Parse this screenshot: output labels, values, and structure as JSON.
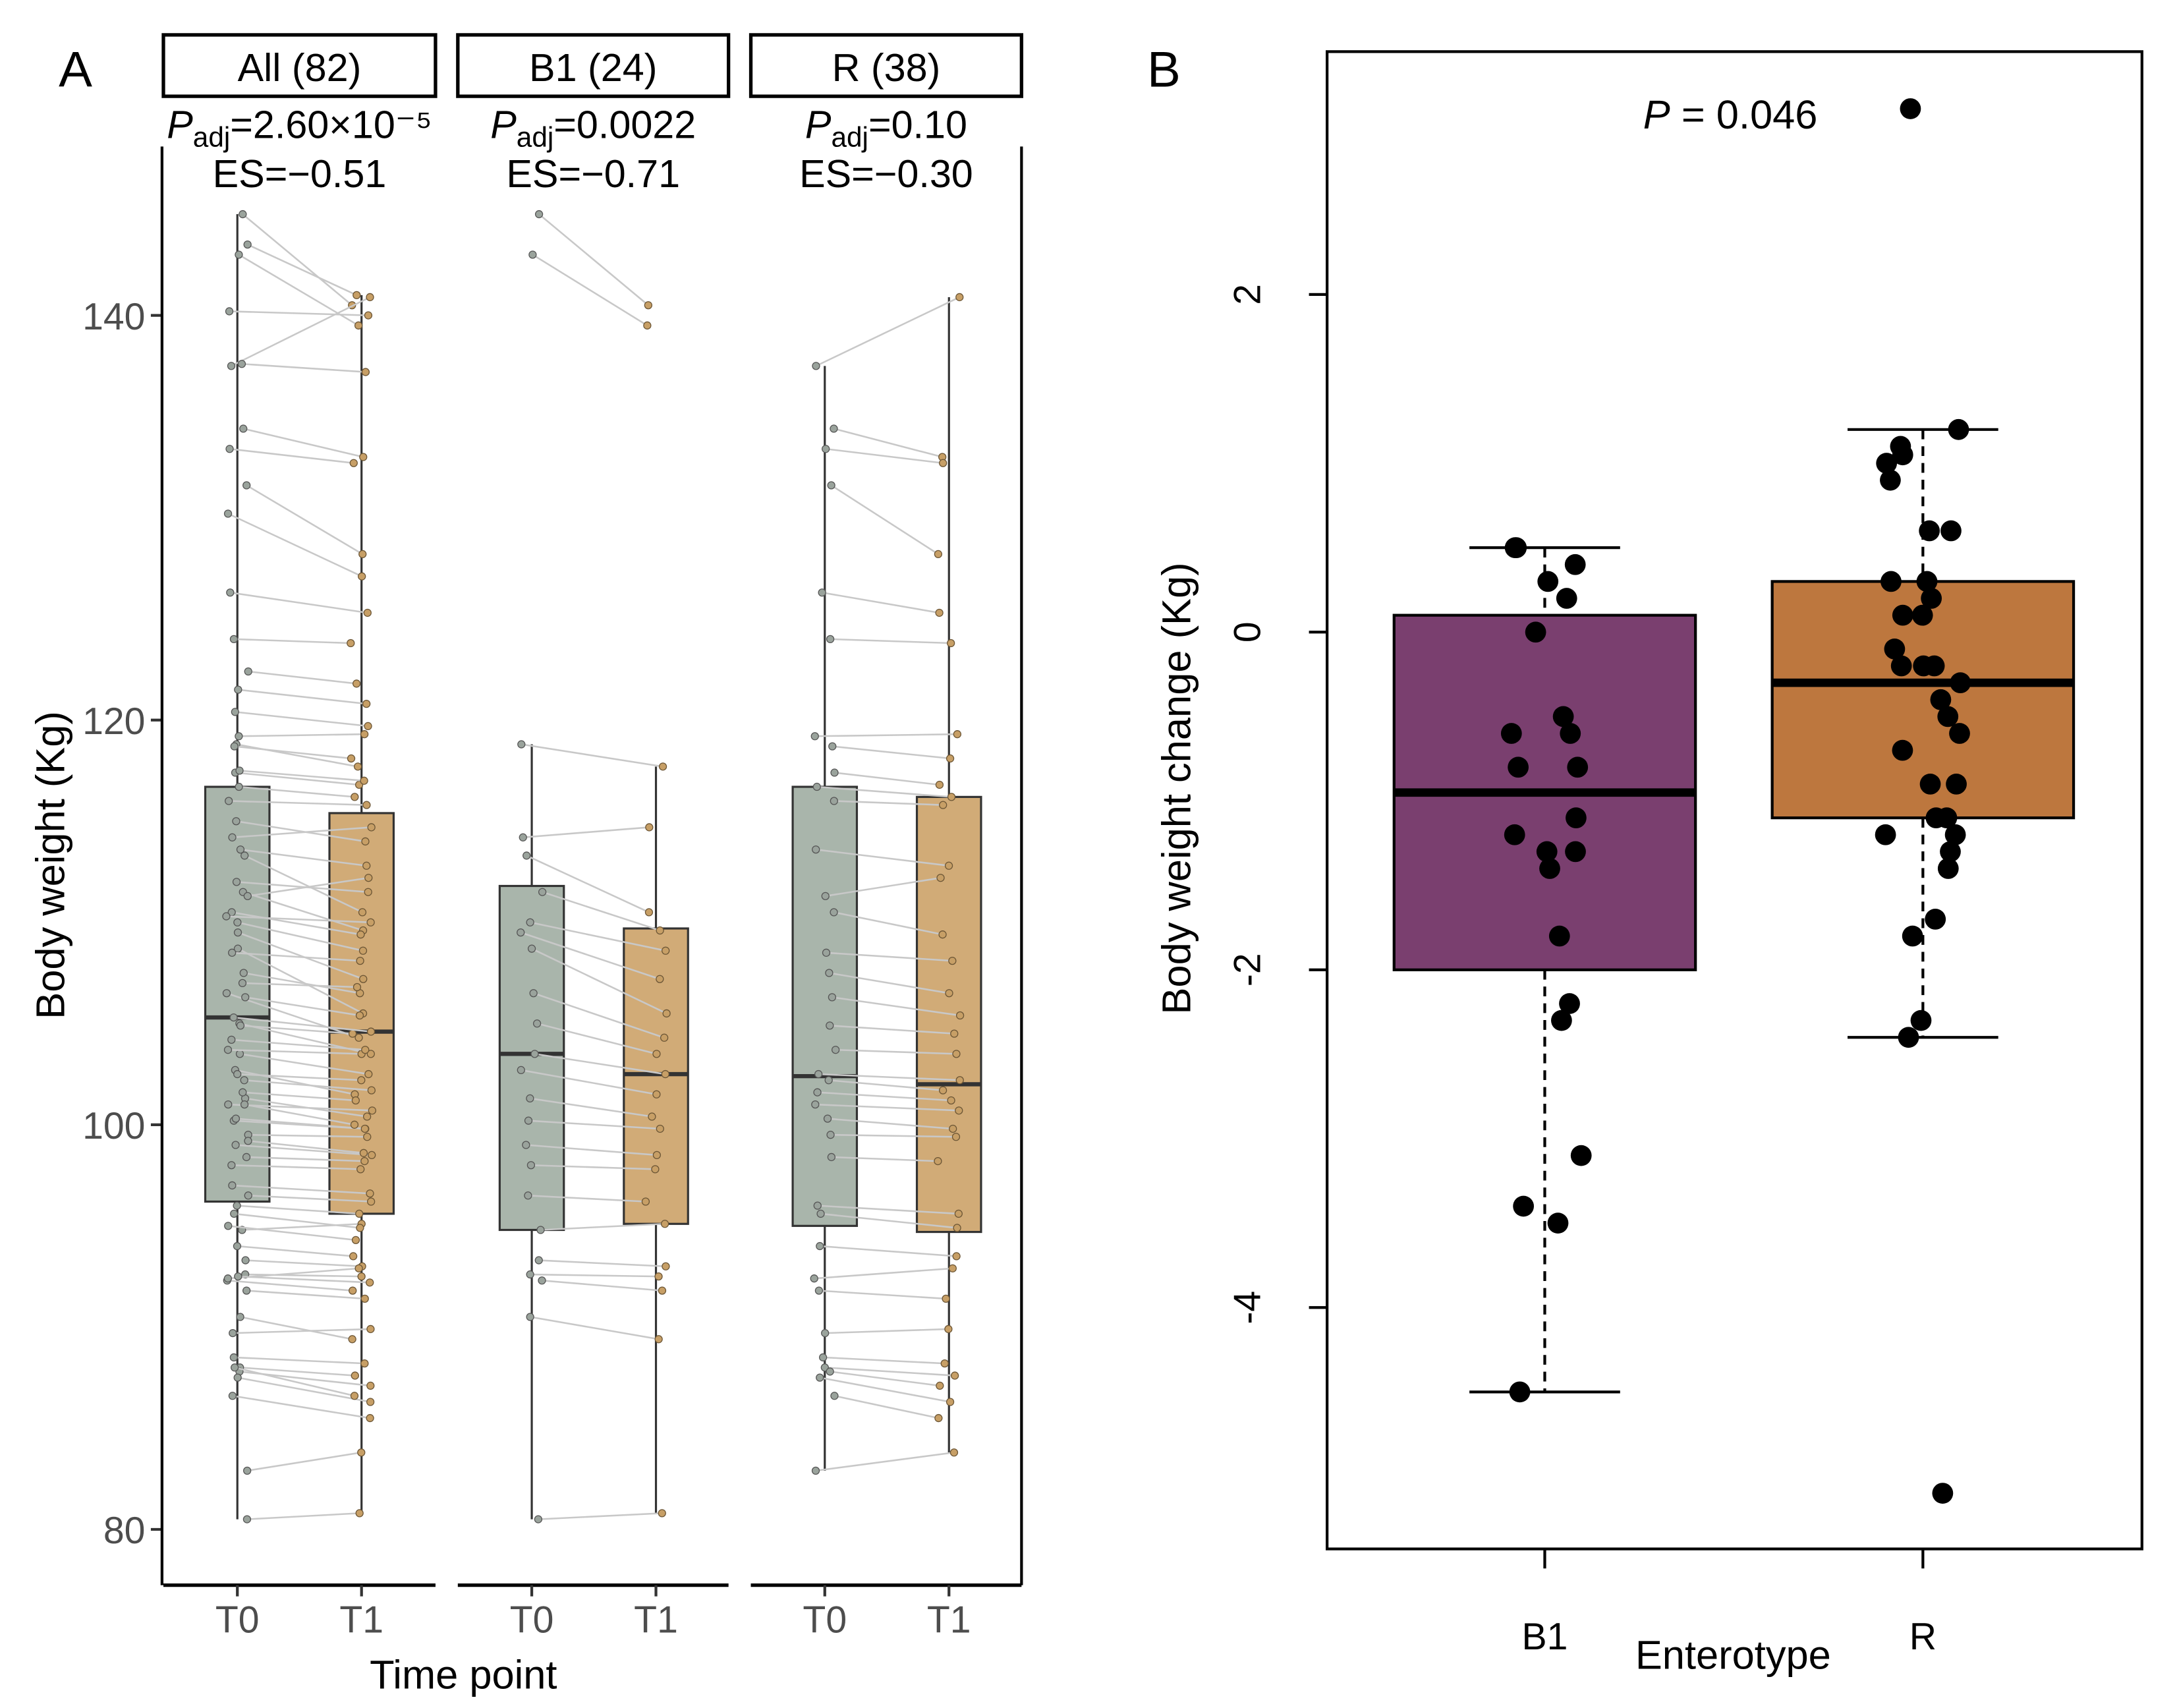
{
  "chart_data": [
    {
      "type": "box",
      "panel_label": "A",
      "ylabel": "Body weight (Kg)",
      "xlabel": "Time point",
      "ylim": [
        77,
        146
      ],
      "yticks": [
        "80",
        "100",
        "120",
        "140"
      ],
      "ytick_values": [
        80,
        100,
        120,
        140
      ],
      "categories": [
        "T0",
        "T1"
      ],
      "colors": {
        "T0_box": "#a9b5ab",
        "T1_box": "#d1ab77",
        "T0_point": "#9aa39c",
        "T1_point": "#c79f66",
        "line": "#c8c8c8"
      },
      "facets": [
        {
          "title": "All (82)",
          "p_symbol": "P",
          "p_sub": "adj",
          "p_value": "=2.60×10⁻⁵",
          "es": "ES=−0.51",
          "boxes": [
            {
              "q1": 96.2,
              "median": 105.3,
              "q3": 116.7,
              "whisker_low": 80.5,
              "whisker_high": 145
            },
            {
              "q1": 95.6,
              "median": 104.6,
              "q3": 115.4,
              "whisker_low": 80.8,
              "whisker_high": 141
            }
          ],
          "pairs_from": [
            "b1",
            "r",
            "other"
          ]
        },
        {
          "title": "B1 (24)",
          "p_symbol": "P",
          "p_sub": "adj",
          "p_value": "=0.0022",
          "es": "ES=−0.71",
          "boxes": [
            {
              "q1": 94.8,
              "median": 103.5,
              "q3": 111.8,
              "whisker_low": 80.5,
              "whisker_high": 118.8
            },
            {
              "q1": 95.1,
              "median": 102.5,
              "q3": 109.7,
              "whisker_low": 80.8,
              "whisker_high": 117.7
            }
          ],
          "pairs_from": [
            "b1"
          ]
        },
        {
          "title": "R (38)",
          "p_symbol": "P",
          "p_sub": "adj",
          "p_value": "=0.10",
          "es": "ES=−0.30",
          "boxes": [
            {
              "q1": 95.0,
              "median": 102.4,
              "q3": 116.7,
              "whisker_low": 82.9,
              "whisker_high": 137.5
            },
            {
              "q1": 94.7,
              "median": 102.0,
              "q3": 116.2,
              "whisker_low": 83.8,
              "whisker_high": 140.9
            }
          ],
          "pairs_from": [
            "r"
          ]
        }
      ],
      "pairs": {
        "b1": [
          [
            145,
            140.5
          ],
          [
            143,
            139.5
          ],
          [
            118.8,
            117.7
          ],
          [
            114.2,
            114.7
          ],
          [
            113.3,
            110.5
          ],
          [
            111.5,
            109.6
          ],
          [
            110,
            108.6
          ],
          [
            109.5,
            107.2
          ],
          [
            108.7,
            105.5
          ],
          [
            106.5,
            104.3
          ],
          [
            105,
            103.5
          ],
          [
            103.5,
            102.5
          ],
          [
            102.7,
            101.5
          ],
          [
            101.3,
            100.4
          ],
          [
            100.2,
            99.8
          ],
          [
            99,
            98.5
          ],
          [
            98,
            97.8
          ],
          [
            96.5,
            96.2
          ],
          [
            94.8,
            95.1
          ],
          [
            93.3,
            93.0
          ],
          [
            92.6,
            92.5
          ],
          [
            92.3,
            91.8
          ],
          [
            90.5,
            89.4
          ],
          [
            80.5,
            80.8
          ]
        ],
        "r": [
          [
            137.5,
            140.9
          ],
          [
            134.4,
            133
          ],
          [
            133.4,
            132.7
          ],
          [
            131.6,
            128.2
          ],
          [
            126.3,
            125.3
          ],
          [
            124,
            123.8
          ],
          [
            119.2,
            119.3
          ],
          [
            118.7,
            118.1
          ],
          [
            117.4,
            116.8
          ],
          [
            116.7,
            116.2
          ],
          [
            116,
            115.8
          ],
          [
            113.6,
            112.8
          ],
          [
            111.3,
            112.2
          ],
          [
            110.5,
            109.4
          ],
          [
            108.5,
            108.1
          ],
          [
            107.5,
            106.5
          ],
          [
            106.3,
            105.4
          ],
          [
            104.9,
            104.5
          ],
          [
            103.7,
            103.5
          ],
          [
            102.5,
            102.2
          ],
          [
            102.2,
            101.7
          ],
          [
            101.6,
            101.2
          ],
          [
            101,
            100.7
          ],
          [
            100.3,
            99.8
          ],
          [
            99.5,
            99.4
          ],
          [
            98.4,
            98.2
          ],
          [
            96,
            95.6
          ],
          [
            95.6,
            94.9
          ],
          [
            94,
            93.5
          ],
          [
            92.4,
            92.9
          ],
          [
            91.8,
            91.4
          ],
          [
            89.7,
            89.9
          ],
          [
            88.5,
            88.2
          ],
          [
            88,
            87.6
          ],
          [
            87.8,
            87.1
          ],
          [
            87.5,
            86.3
          ],
          [
            86.6,
            85.5
          ],
          [
            82.9,
            83.8
          ]
        ],
        "other": [
          [
            143.5,
            141
          ],
          [
            140.2,
            140
          ],
          [
            137.6,
            137.2
          ],
          [
            130.2,
            127.1
          ],
          [
            122.4,
            121.8
          ],
          [
            121.5,
            120.8
          ],
          [
            120.4,
            119.7
          ],
          [
            117.5,
            117
          ],
          [
            115,
            114
          ],
          [
            112,
            111.5
          ],
          [
            110.3,
            110
          ],
          [
            107,
            106.8
          ],
          [
            105.3,
            104.6
          ],
          [
            104.2,
            103.7
          ],
          [
            101,
            100
          ],
          [
            99.2,
            98.6
          ],
          [
            97,
            96.6
          ],
          [
            95,
            94.3
          ],
          [
            92.5,
            92.2
          ],
          [
            88,
            86.6
          ]
        ]
      }
    },
    {
      "type": "box",
      "panel_label": "B",
      "ylabel": "Body weight change (Kg)",
      "xlabel": "Enterotype",
      "ylim": [
        -5.4,
        3.5
      ],
      "yticks": [
        "-4",
        "-2",
        "0",
        "2"
      ],
      "ytick_values": [
        -4,
        -2,
        0,
        2
      ],
      "annotation_symbol": "P",
      "annotation_value": " = 0.046",
      "categories": [
        "B1",
        "R"
      ],
      "boxes": [
        {
          "name": "B1",
          "color": "#7a3f6f",
          "q1": -2.0,
          "median": -0.95,
          "q3": 0.1,
          "whisker_low": -4.5,
          "whisker_high": 0.5,
          "points": [
            0.5,
            0.5,
            0.4,
            0.3,
            0.2,
            0,
            -0.5,
            -0.6,
            -0.6,
            -0.8,
            -0.8,
            -1.1,
            -1.2,
            -1.3,
            -1.3,
            -1.4,
            -1.8,
            -2.2,
            -2.3,
            -3.1,
            -3.4,
            -3.5,
            -4.5
          ]
        },
        {
          "name": "R",
          "color": "#bd773e",
          "q1": -1.1,
          "median": -0.3,
          "q3": 0.3,
          "whisker_low": -2.4,
          "whisker_high": 1.2,
          "points": [
            3.1,
            1.2,
            1.1,
            1.05,
            1.0,
            0.9,
            0.6,
            0.6,
            0.3,
            0.3,
            0.2,
            0.1,
            0.1,
            -0.1,
            -0.2,
            -0.2,
            -0.2,
            -0.3,
            -0.4,
            -0.5,
            -0.6,
            -0.7,
            -0.9,
            -0.9,
            -1.1,
            -1.1,
            -1.2,
            -1.2,
            -1.3,
            -1.4,
            -1.7,
            -1.8,
            -2.3,
            -2.4,
            -5.1
          ]
        }
      ]
    }
  ]
}
